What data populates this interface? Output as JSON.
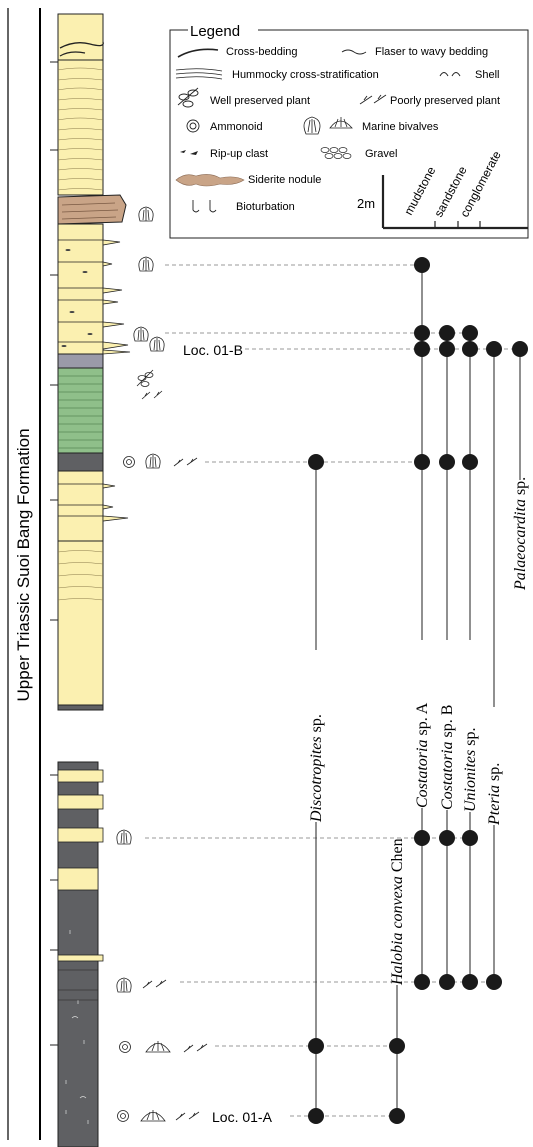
{
  "formation_label": "Upper Triassic Suoi Bang Formation",
  "legend": {
    "title": "Legend",
    "items": {
      "cross_bedding": "Cross-bedding",
      "flaser": "Flaser to wavy bedding",
      "hummocky": "Hummocky cross-stratification",
      "shell": "Shell",
      "well_plant": "Well preserved plant",
      "poor_plant": "Poorly preserved plant",
      "ammonoid": "Ammonoid",
      "marine_bivalves": "Marine bivalves",
      "ripup": "Rip-up clast",
      "gravel": "Gravel",
      "siderite": "Siderite nodule",
      "bioturbation": "Bioturbation"
    },
    "scale_label": "2m",
    "grain_sizes": [
      "mudstone",
      "sandstone",
      "conglomerate"
    ]
  },
  "locations": {
    "upper": "Loc. 01-B",
    "lower": "Loc. 01-A"
  },
  "taxa": [
    {
      "genus": "Discotropites",
      "suffix": " sp."
    },
    {
      "genus": "Halobia convexa",
      "suffix": " Chen"
    },
    {
      "genus": "Costatoria",
      "suffix": " sp. A"
    },
    {
      "genus": "Costatoria",
      "suffix": " sp. B"
    },
    {
      "genus": "Unionites",
      "suffix": " sp."
    },
    {
      "genus": "Pteria",
      "suffix": " sp."
    },
    {
      "genus": "Palaeocardita",
      "suffix": " sp."
    }
  ],
  "colors": {
    "sandstone": "#fbf0b0",
    "mudstone": "#5f6063",
    "green_beds": "#8fbf8a",
    "siderite_bed": "#c9a487",
    "dot": "#1a1a1a",
    "dashed": "#9a9a9a"
  }
}
